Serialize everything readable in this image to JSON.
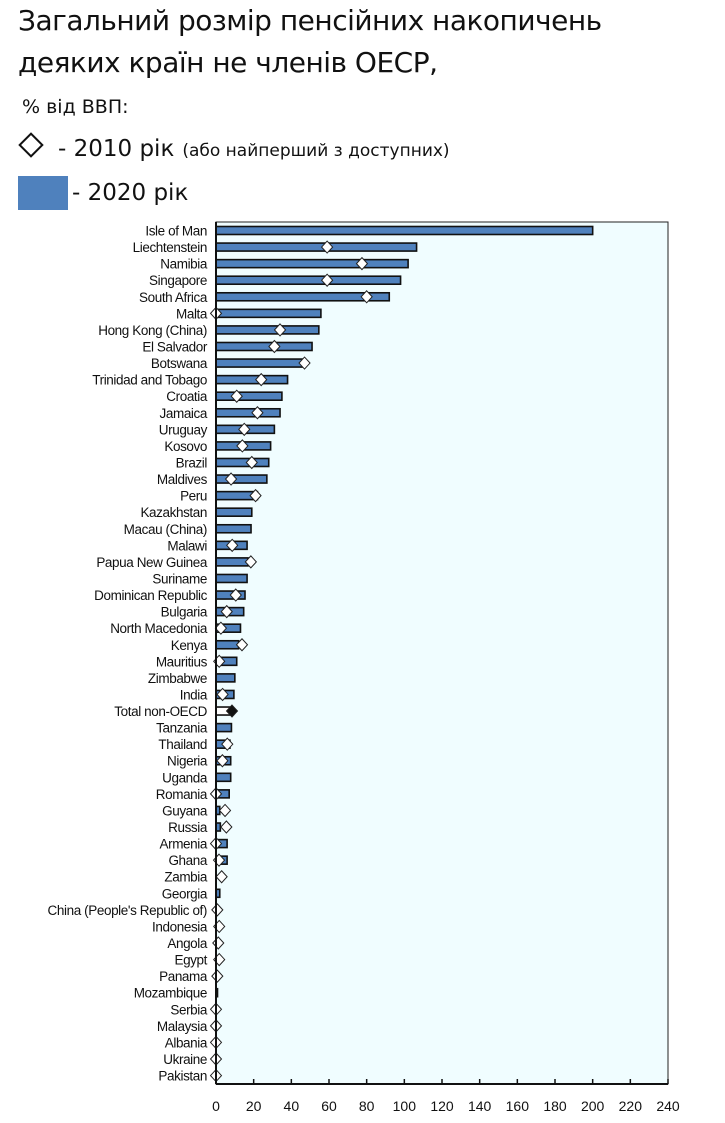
{
  "chart_data": {
    "type": "bar",
    "orientation": "horizontal",
    "title": "Загальний розмір пенсійних накопичень деяких країн не членів ОЕСР,",
    "title_line1": "Загальний розмір пенсійних накопичень",
    "title_line2": "деяких країн не членів ОЕСР,",
    "subtitle": "% від ВВП:",
    "legend": [
      {
        "marker": "diamond",
        "label": "- 2010 рік",
        "note": "(або найперший з доступних)"
      },
      {
        "marker": "bar",
        "label": "- 2020 рік",
        "color": "#4f81bd"
      }
    ],
    "xlim": [
      0,
      240
    ],
    "xticks": [
      0,
      20,
      40,
      60,
      80,
      100,
      120,
      140,
      160,
      180,
      200,
      220,
      240
    ],
    "grid": false,
    "categories": [
      "Isle of Man",
      "Liechtenstein",
      "Namibia",
      "Singapore",
      "South Africa",
      "Malta",
      "Hong Kong (China)",
      "El Salvador",
      "Botswana",
      "Trinidad and Tobago",
      "Croatia",
      "Jamaica",
      "Uruguay",
      "Kosovo",
      "Brazil",
      "Maldives",
      "Peru",
      "Kazakhstan",
      "Macau (China)",
      "Malawi",
      "Papua New Guinea",
      "Suriname",
      "Dominican Republic",
      "Bulgaria",
      "North Macedonia",
      "Kenya",
      "Mauritius",
      "Zimbabwe",
      "India",
      "Total non-OECD",
      "Tanzania",
      "Thailand",
      "Nigeria",
      "Uganda",
      "Romania",
      "Guyana",
      "Russia",
      "Armenia",
      "Ghana",
      "Zambia",
      "Georgia",
      "China (People's Republic of)",
      "Indonesia",
      "Angola",
      "Egypt",
      "Panama",
      "Mozambique",
      "Serbia",
      "Malaysia",
      "Albania",
      "Ukraine",
      "Pakistan"
    ],
    "series": [
      {
        "name": "2020",
        "type": "bar",
        "color": "#4f81bd",
        "values": [
          200,
          106.5,
          102,
          98,
          92,
          55.7,
          54.6,
          51,
          46.7,
          38,
          35,
          34,
          31,
          29,
          28,
          27,
          22,
          19,
          18.6,
          16.5,
          17,
          16.5,
          15.4,
          14.7,
          13,
          12,
          11,
          10,
          9.5,
          8,
          8.2,
          7.4,
          7.8,
          7.8,
          7,
          2,
          2.3,
          5.9,
          5.9,
          0,
          2,
          0,
          0,
          0,
          0,
          0,
          0.8,
          0,
          0,
          0,
          0,
          0
        ]
      },
      {
        "name": "2010",
        "type": "diamond",
        "values": [
          null,
          59,
          77.5,
          59,
          80,
          0,
          34,
          31,
          47,
          24,
          11,
          22,
          15,
          14,
          19,
          8,
          21,
          null,
          null,
          8.6,
          18.5,
          null,
          10.5,
          5.7,
          2.6,
          13.8,
          1.7,
          null,
          3.5,
          8.5,
          null,
          6,
          3.4,
          null,
          0,
          4.8,
          5.5,
          0,
          1.6,
          3,
          null,
          0.7,
          1.7,
          1.2,
          1.7,
          0.7,
          null,
          0,
          0,
          0,
          0,
          0
        ]
      }
    ],
    "highlight": "Total non-OECD"
  },
  "colors": {
    "bar": "#4f81bd",
    "plot_bg": "#f0fdff",
    "highlight_diamond": "#111111"
  }
}
